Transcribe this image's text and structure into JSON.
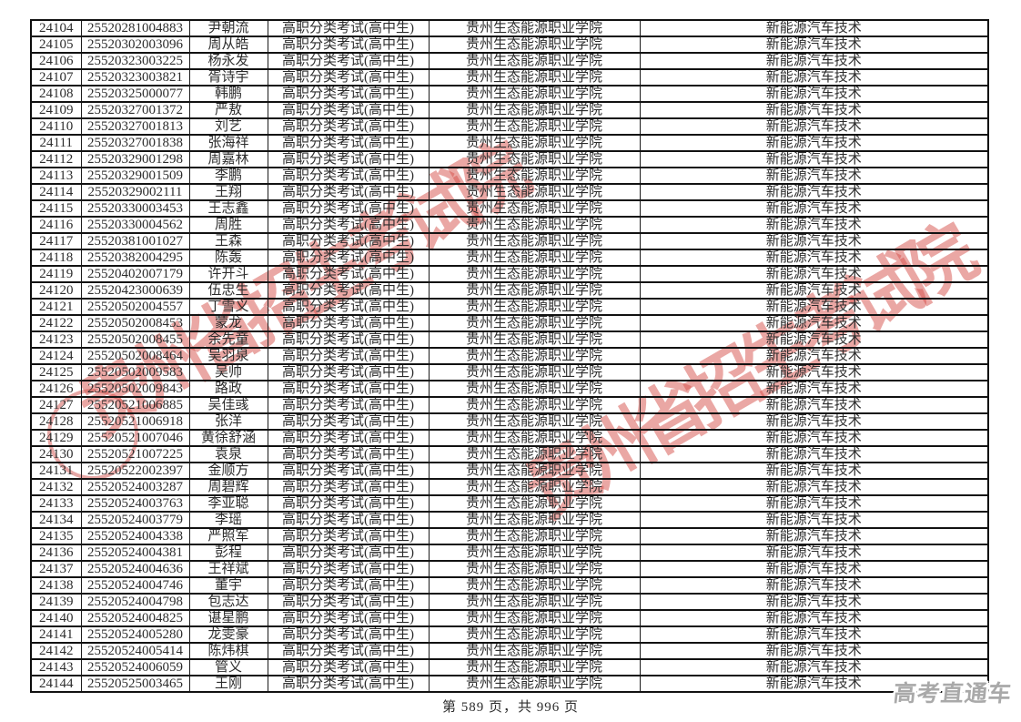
{
  "page": {
    "footer": "第 589 页，共 996 页"
  },
  "watermarks": {
    "red_text": "贵州省招生考试院",
    "red_color": "#d6504a",
    "gray_text": "高考直通车",
    "gray_color": "#a9a9a9",
    "seal_shape": "red-circle-stamp"
  },
  "table": {
    "repeated": {
      "exam_type": "高职分类考试(高中生)",
      "college": "贵州生态能源职业学院",
      "major": "新能源汽车技术"
    },
    "rows": [
      {
        "no": "24104",
        "exam_no": "25520281004883",
        "name": "尹朝流"
      },
      {
        "no": "24105",
        "exam_no": "25520302003096",
        "name": "周从皓"
      },
      {
        "no": "24106",
        "exam_no": "25520323003225",
        "name": "杨永发"
      },
      {
        "no": "24107",
        "exam_no": "25520323003821",
        "name": "胥诗宇"
      },
      {
        "no": "24108",
        "exam_no": "25520325000077",
        "name": "韩鹏"
      },
      {
        "no": "24109",
        "exam_no": "25520327001372",
        "name": "严敖"
      },
      {
        "no": "24110",
        "exam_no": "25520327001813",
        "name": "刘艺"
      },
      {
        "no": "24111",
        "exam_no": "25520327001838",
        "name": "张海祥"
      },
      {
        "no": "24112",
        "exam_no": "25520329001298",
        "name": "周嘉林"
      },
      {
        "no": "24113",
        "exam_no": "25520329001509",
        "name": "李鹏"
      },
      {
        "no": "24114",
        "exam_no": "25520329002111",
        "name": "王翔"
      },
      {
        "no": "24115",
        "exam_no": "25520330003453",
        "name": "王志鑫"
      },
      {
        "no": "24116",
        "exam_no": "25520330004562",
        "name": "周胜"
      },
      {
        "no": "24117",
        "exam_no": "25520381001027",
        "name": "王森"
      },
      {
        "no": "24118",
        "exam_no": "25520382004295",
        "name": "陈轰"
      },
      {
        "no": "24119",
        "exam_no": "25520402007179",
        "name": "许开斗"
      },
      {
        "no": "24120",
        "exam_no": "25520423000639",
        "name": "伍忠生"
      },
      {
        "no": "24121",
        "exam_no": "25520502004557",
        "name": "丁雪义"
      },
      {
        "no": "24122",
        "exam_no": "25520502008453",
        "name": "蒙龙"
      },
      {
        "no": "24123",
        "exam_no": "25520502008455",
        "name": "余先童"
      },
      {
        "no": "24124",
        "exam_no": "25520502008464",
        "name": "吴羽泉"
      },
      {
        "no": "24125",
        "exam_no": "25520502009583",
        "name": "吴帅"
      },
      {
        "no": "24126",
        "exam_no": "25520502009843",
        "name": "路政"
      },
      {
        "no": "24127",
        "exam_no": "25520521006885",
        "name": "吴佳彧"
      },
      {
        "no": "24128",
        "exam_no": "25520521006918",
        "name": "张洋"
      },
      {
        "no": "24129",
        "exam_no": "25520521007046",
        "name": "黄徐舒涵"
      },
      {
        "no": "24130",
        "exam_no": "25520521007225",
        "name": "袁泉"
      },
      {
        "no": "24131",
        "exam_no": "25520522002397",
        "name": "金顺方"
      },
      {
        "no": "24132",
        "exam_no": "25520524003287",
        "name": "周碧辉"
      },
      {
        "no": "24133",
        "exam_no": "25520524003763",
        "name": "李亚聪"
      },
      {
        "no": "24134",
        "exam_no": "25520524003779",
        "name": "李瑶"
      },
      {
        "no": "24135",
        "exam_no": "25520524004338",
        "name": "严照军"
      },
      {
        "no": "24136",
        "exam_no": "25520524004381",
        "name": "彭程"
      },
      {
        "no": "24137",
        "exam_no": "25520524004636",
        "name": "王祥斌"
      },
      {
        "no": "24138",
        "exam_no": "25520524004746",
        "name": "董宇"
      },
      {
        "no": "24139",
        "exam_no": "25520524004798",
        "name": "包志达"
      },
      {
        "no": "24140",
        "exam_no": "25520524004825",
        "name": "谌星鹏"
      },
      {
        "no": "24141",
        "exam_no": "25520524005280",
        "name": "龙雯豪"
      },
      {
        "no": "24142",
        "exam_no": "25520524005414",
        "name": "陈炜棋"
      },
      {
        "no": "24143",
        "exam_no": "25520524006059",
        "name": "管义"
      },
      {
        "no": "24144",
        "exam_no": "25520525003465",
        "name": "王刚"
      }
    ]
  }
}
